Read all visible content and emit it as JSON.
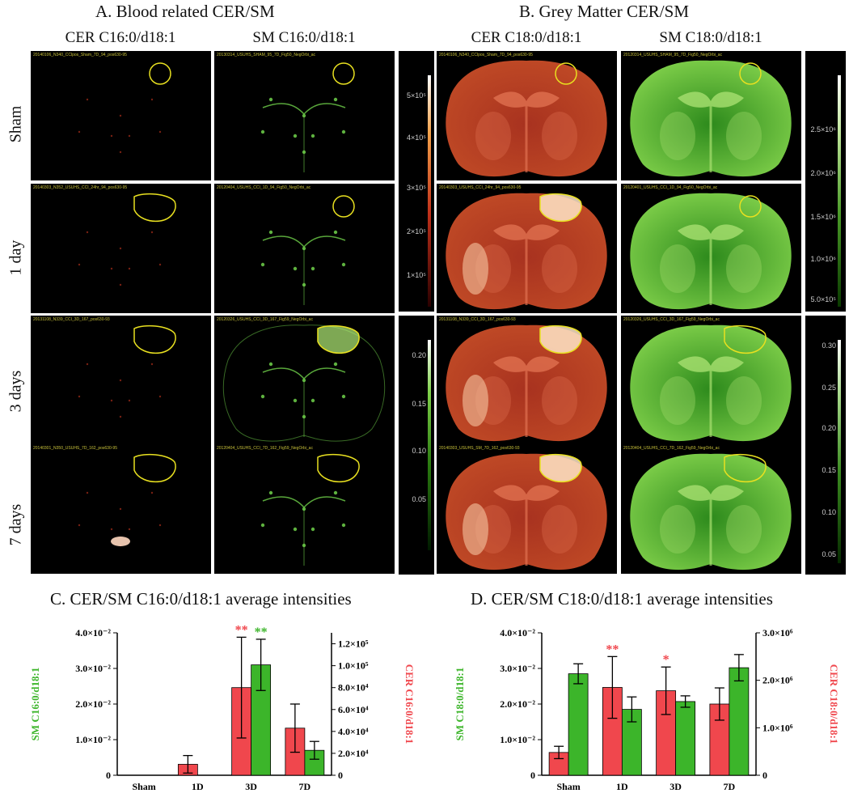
{
  "panels": {
    "A": {
      "title": "A. Blood related CER/SM",
      "col_cer": "CER C16:0/d18:1",
      "col_sm": "SM C16:0/d18:1"
    },
    "B": {
      "title": "B. Grey Matter CER/SM",
      "col_cer": "CER C18:0/d18:1",
      "col_sm": "SM C18:0/d18:1"
    }
  },
  "rows": [
    "Sham",
    "1 day",
    "3 days",
    "7 days"
  ],
  "tile_headers": {
    "a_cer": [
      "20140106_N340_CClpos_Sham_7D_94_pos630-95",
      "20140303_N352_USUHS_CCI_24hr_94_pos630-95",
      "20131108_N339_CCI_3D_167_pos630-93",
      "20140301_N350_USUHS_7D_162_pos630-95"
    ],
    "a_sm": [
      "20130314_USUHS_SHAM_95_7D_Fig50_NegOrbi_ac",
      "20120404_USUHS_CCI_1D_94_Fig50_NegOrbi_ac",
      "20120326_USUHS_CCI_3D_167_Fig59_NegOrbi_ac",
      "20120404_USUHS_CCI_7D_162_Fig59_NegOrbi_ac"
    ],
    "b_cer": [
      "20140106_N340_CClpos_Sham_7D_94_pos630-95",
      "20140303_USUHS_CCI_24hr_94_pos630-95",
      "20131108_N339_CCI_3D_167_pos630-93",
      "20140303_USUHS_SM_7D_162_pos630-93"
    ],
    "b_sm": [
      "20120314_USUHS_SHAM_95_7D_Fig50_NegOrbi_ac",
      "20120401_USUHS_CCI_1D_94_Fig50_NegOrbi_ac",
      "20120326_USUHS_CCI_3D_167_Fig59_NegOrbi_ac",
      "20120404_USUHS_CCI_7D_162_Fig59_NegOrbi_ac"
    ]
  },
  "colorbars": {
    "a_red": [
      "5×10⁵",
      "4×10⁵",
      "3×10⁵",
      "2×10⁵",
      "1×10⁵"
    ],
    "a_green": [
      "0.20",
      "0.15",
      "0.10",
      "0.05"
    ],
    "b_green": [
      "2.5×10⁶",
      "2.0×10⁶",
      "1.5×10⁶",
      "1.0×10⁶",
      "5.0×10⁵"
    ],
    "b_green2": [
      "0.30",
      "0.25",
      "0.20",
      "0.15",
      "0.10",
      "0.05"
    ]
  },
  "colors": {
    "cer": "#f0474d",
    "sm": "#3cb52a",
    "roi": "#e8e020",
    "cer_star": "#f0474d",
    "sm_star": "#3cb52a"
  },
  "chart_data": [
    {
      "type": "bar",
      "title": "C. CER/SM C16:0/d18:1 average intensities",
      "categories": [
        "Sham",
        "1D",
        "3D",
        "7D"
      ],
      "ylabel_left": "SM C16:0/d18:1",
      "ylabel_right": "CER C16:0/d18:1",
      "left_ticks": [
        "0",
        "1.0×10⁻²",
        "2.0×10⁻²",
        "3.0×10⁻²",
        "4.0×10⁻²"
      ],
      "right_ticks": [
        "0",
        "2.0×10⁴",
        "4.0×10⁴",
        "6.0×10⁴",
        "8.0×10⁴",
        "1.0×10⁵",
        "1.2×10⁵"
      ],
      "left_ylim": [
        0,
        0.04
      ],
      "right_ylim": [
        0,
        130000
      ],
      "series": [
        {
          "name": "CER C16:0/d18:1",
          "axis": "right",
          "values": [
            0,
            10000,
            80000,
            43000
          ],
          "errors": [
            0,
            8000,
            46000,
            22000
          ]
        },
        {
          "name": "SM C16:0/d18:1",
          "axis": "left",
          "values": [
            0,
            0,
            0.031,
            0.007
          ],
          "errors": [
            0,
            0,
            0.0072,
            0.0025
          ]
        }
      ],
      "annotations": [
        {
          "category": "3D",
          "series": "CER C16:0/d18:1",
          "text": "**"
        },
        {
          "category": "3D",
          "series": "SM C16:0/d18:1",
          "text": "**"
        }
      ]
    },
    {
      "type": "bar",
      "title": "D. CER/SM C18:0/d18:1 average intensities",
      "categories": [
        "Sham",
        "1D",
        "3D",
        "7D"
      ],
      "ylabel_left": "SM C18:0/d18:1",
      "ylabel_right": "CER C18:0/d18:1",
      "left_ticks": [
        "0",
        "1.0×10⁻²",
        "2.0×10⁻²",
        "3.0×10⁻²",
        "4.0×10⁻²"
      ],
      "right_ticks": [
        "0",
        "1.0×10⁶",
        "2.0×10⁶",
        "3.0×10⁶"
      ],
      "left_ylim": [
        0,
        0.04
      ],
      "right_ylim": [
        0,
        3000000
      ],
      "series": [
        {
          "name": "CER C18:0/d18:1",
          "axis": "right",
          "values": [
            480000,
            1850000,
            1780000,
            1500000
          ],
          "errors": [
            130000,
            650000,
            500000,
            340000
          ]
        },
        {
          "name": "SM C18:0/d18:1",
          "axis": "left",
          "values": [
            0.0285,
            0.0185,
            0.0207,
            0.0302
          ],
          "errors": [
            0.0028,
            0.0035,
            0.0016,
            0.0037
          ]
        }
      ],
      "annotations": [
        {
          "category": "1D",
          "series": "CER C18:0/d18:1",
          "text": "**"
        },
        {
          "category": "3D",
          "series": "CER C18:0/d18:1",
          "text": "*"
        }
      ]
    }
  ]
}
